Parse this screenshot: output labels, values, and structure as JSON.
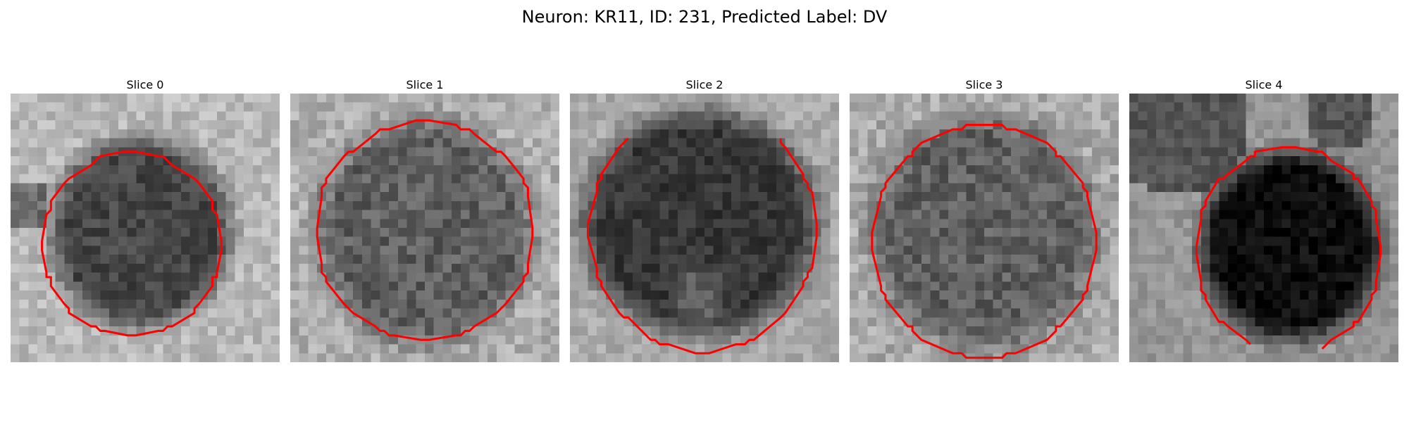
{
  "figure": {
    "title": "Neuron: KR11, ID: 231, Predicted Label: DV"
  },
  "panels": [
    {
      "title": "Slice 0"
    },
    {
      "title": "Slice 1"
    },
    {
      "title": "Slice 2"
    },
    {
      "title": "Slice 3"
    },
    {
      "title": "Slice 4"
    }
  ],
  "colors": {
    "contour": "#ff0000",
    "colormap": "gray"
  }
}
